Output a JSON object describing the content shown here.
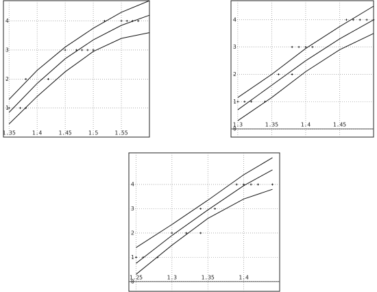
{
  "chart_data": [
    {
      "type": "scatter",
      "xlim": [
        1.34,
        1.6
      ],
      "ylim": [
        0,
        4.7
      ],
      "xticks": [
        1.35,
        1.4,
        1.45,
        1.5,
        1.55
      ],
      "yticks": [
        1,
        2,
        3,
        4
      ],
      "grid": true,
      "color": "#111111",
      "points": {
        "x": [
          1.35,
          1.37,
          1.38,
          1.38,
          1.42,
          1.45,
          1.47,
          1.48,
          1.49,
          1.5,
          1.52,
          1.55,
          1.56,
          1.57,
          1.58
        ],
        "y": [
          1,
          1,
          1,
          2,
          2,
          3,
          3,
          3,
          3,
          3,
          4,
          4,
          4,
          4,
          4
        ]
      },
      "series": [
        {
          "x": [
            1.35,
            1.4,
            1.45,
            1.5,
            1.55,
            1.6
          ],
          "values": [
            1.3,
            2.3,
            3.1,
            3.75,
            4.3,
            4.7
          ]
        },
        {
          "x": [
            1.35,
            1.4,
            1.45,
            1.5,
            1.55,
            1.6
          ],
          "values": [
            0.85,
            1.85,
            2.7,
            3.35,
            3.85,
            4.2
          ]
        },
        {
          "x": [
            1.35,
            1.4,
            1.45,
            1.5,
            1.55,
            1.6
          ],
          "values": [
            0.45,
            1.4,
            2.25,
            2.95,
            3.4,
            3.6
          ]
        }
      ]
    },
    {
      "type": "scatter",
      "xlim": [
        1.29,
        1.5
      ],
      "ylim": [
        -0.3,
        4.7
      ],
      "xticks": [
        1.3,
        1.35,
        1.4,
        1.45
      ],
      "yticks": [
        0,
        1,
        2,
        3,
        4
      ],
      "grid": true,
      "color": "#111111",
      "points": {
        "x": [
          1.3,
          1.31,
          1.32,
          1.34,
          1.36,
          1.38,
          1.38,
          1.39,
          1.4,
          1.41,
          1.46,
          1.47,
          1.48,
          1.49,
          1.5
        ],
        "y": [
          1,
          1,
          1,
          1,
          2,
          2,
          3,
          3,
          3,
          3,
          4,
          4,
          4,
          4,
          4
        ]
      },
      "series": [
        {
          "x": [
            1.3,
            1.35,
            1.4,
            1.45,
            1.5
          ],
          "values": [
            1.15,
            2.0,
            2.95,
            3.75,
            4.5
          ]
        },
        {
          "x": [
            1.3,
            1.35,
            1.4,
            1.45,
            1.5
          ],
          "values": [
            0.7,
            1.6,
            2.5,
            3.3,
            4.0
          ]
        },
        {
          "x": [
            1.3,
            1.35,
            1.4,
            1.45,
            1.5
          ],
          "values": [
            0.3,
            1.15,
            2.1,
            2.9,
            3.5
          ]
        }
      ]
    },
    {
      "type": "scatter",
      "xlim": [
        1.24,
        1.45
      ],
      "ylim": [
        -0.4,
        5.3
      ],
      "xticks": [
        1.25,
        1.3,
        1.35,
        1.4
      ],
      "yticks": [
        0,
        1,
        2,
        3,
        4
      ],
      "grid": true,
      "color": "#111111",
      "points": {
        "x": [
          1.25,
          1.26,
          1.28,
          1.3,
          1.32,
          1.34,
          1.34,
          1.36,
          1.39,
          1.4,
          1.41,
          1.42,
          1.44
        ],
        "y": [
          1,
          1,
          1,
          2,
          2,
          2,
          3,
          3,
          4,
          4,
          4,
          4,
          4
        ]
      },
      "series": [
        {
          "x": [
            1.25,
            1.3,
            1.35,
            1.4,
            1.44
          ],
          "values": [
            1.4,
            2.35,
            3.35,
            4.4,
            5.1
          ]
        },
        {
          "x": [
            1.25,
            1.3,
            1.35,
            1.4,
            1.44
          ],
          "values": [
            0.75,
            1.9,
            2.95,
            3.95,
            4.6
          ]
        },
        {
          "x": [
            1.25,
            1.3,
            1.35,
            1.4,
            1.44
          ],
          "values": [
            0.3,
            1.5,
            2.6,
            3.4,
            3.8
          ]
        }
      ]
    }
  ]
}
